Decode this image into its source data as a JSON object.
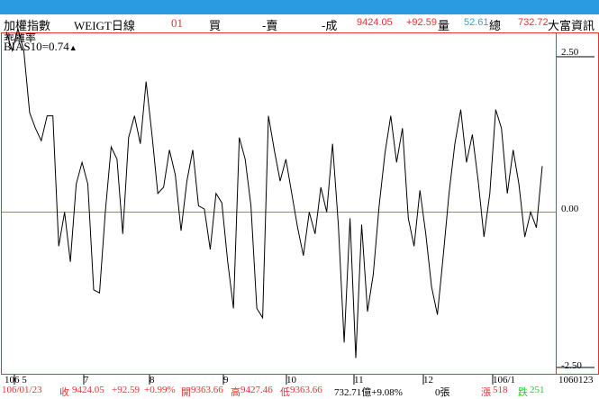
{
  "header": {
    "index_name": "加權指數",
    "weight_label": "WEIGT日線",
    "code": "01",
    "buy_label": "買",
    "sell_label": "-賣",
    "deal_label": "-成",
    "price": "9424.05",
    "change": "+92.59",
    "volume_label": "量",
    "volume_value": "52.61",
    "total_label": "總",
    "total_value": "732.72",
    "broker": "大富資訊"
  },
  "indicator": {
    "name": "乖離率",
    "value_label": "BIAS10=0.74",
    "arrow": "▲"
  },
  "footer": {
    "date": "106/01/23",
    "close_label": "收",
    "close_value": "9424.05",
    "change": "+92.59",
    "change_pct": "+0.99%",
    "open_label": "開",
    "open_value": "9363.66",
    "high_label": "高",
    "high_value": "9427.46",
    "low_label": "低",
    "low_value": "9363.66",
    "amount": "732.71億+9.08%",
    "units": "0張",
    "up_label": "漲",
    "up_value": "518",
    "down_label": "跌",
    "down_value": "251"
  },
  "colors": {
    "line": "#000000",
    "zero_line": "#8a9a3a",
    "border": "#e8322f",
    "accent_red": "#e8322f",
    "accent_cyan": "#2aa6d8",
    "accent_green": "#2ec82e",
    "topbar": "#2a9be0"
  },
  "chart_data": {
    "type": "line",
    "title": "乖離率",
    "xlabel": "",
    "ylabel": "",
    "ylim": [
      -2.5,
      2.5
    ],
    "grid": false,
    "y_ticks": [
      "2.50",
      "0.00",
      "-2.50"
    ],
    "x_ticks": [
      "106 5",
      "7",
      "8",
      "9",
      "10",
      "11",
      "12",
      "106/1",
      "1060123"
    ],
    "series": [
      {
        "values": [
          2.9,
          2.6,
          2.95,
          2.6,
          1.6,
          1.35,
          1.15,
          1.55,
          1.55,
          -0.55,
          0.0,
          -0.8,
          0.45,
          0.8,
          0.45,
          -1.25,
          -1.3,
          0.0,
          1.05,
          0.85,
          -0.35,
          1.2,
          1.55,
          1.1,
          2.1,
          1.25,
          0.3,
          0.4,
          1.0,
          0.6,
          -0.3,
          0.5,
          1.0,
          0.1,
          0.05,
          -0.6,
          0.3,
          0.15,
          -0.8,
          -1.55,
          1.2,
          0.85,
          0.1,
          -1.55,
          -1.7,
          1.55,
          1.0,
          0.5,
          0.85,
          0.3,
          -0.25,
          -0.7,
          0.0,
          -0.35,
          0.4,
          0.0,
          1.1,
          -0.2,
          -2.1,
          -0.1,
          -2.35,
          -0.2,
          -1.6,
          -1.0,
          0.1,
          0.95,
          1.55,
          0.8,
          1.35,
          -0.1,
          -0.55,
          0.35,
          -0.35,
          -1.2,
          -1.65,
          -0.7,
          0.3,
          1.1,
          1.65,
          0.8,
          1.25,
          0.5,
          -0.4,
          0.3,
          1.65,
          1.35,
          0.3,
          1.0,
          0.45,
          -0.4,
          0.0,
          -0.25,
          0.74
        ]
      }
    ]
  }
}
